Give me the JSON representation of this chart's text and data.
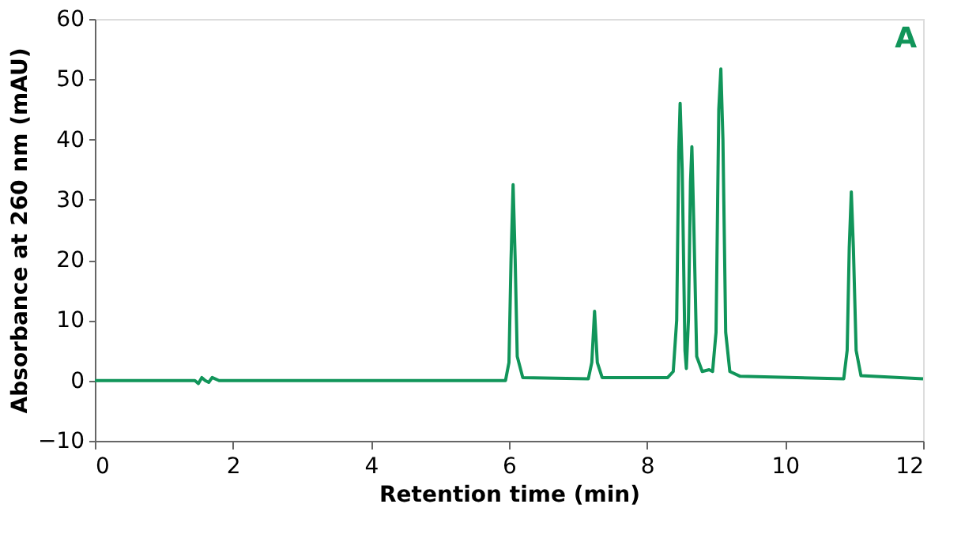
{
  "chart_data": {
    "type": "line",
    "xlabel": "Retention time (min)",
    "ylabel": "Absorbance at 260 nm (mAU)",
    "annotations": [
      "A"
    ],
    "xlim": [
      0,
      12
    ],
    "xticks": [
      0,
      2,
      4,
      6,
      8,
      10,
      12
    ],
    "ylim": [
      -10,
      60
    ],
    "yticks": [
      -10,
      0,
      10,
      20,
      30,
      40,
      50,
      60
    ],
    "grid": false,
    "marker": "none",
    "line_style": "solid",
    "series": [
      {
        "color": "#11955a",
        "x": [
          0,
          1.45,
          1.5,
          1.55,
          1.6,
          1.65,
          1.7,
          1.8,
          2,
          5.95,
          6.0,
          6.03,
          6.06,
          6.09,
          6.12,
          6.2,
          7.15,
          7.2,
          7.24,
          7.28,
          7.35,
          8.3,
          8.38,
          8.43,
          8.46,
          8.48,
          8.51,
          8.55,
          8.57,
          8.6,
          8.63,
          8.65,
          8.68,
          8.72,
          8.8,
          8.9,
          8.95,
          9.0,
          9.04,
          9.07,
          9.1,
          9.14,
          9.2,
          9.35,
          10.85,
          10.9,
          10.93,
          10.96,
          10.99,
          11.03,
          11.1,
          12
        ],
        "values": [
          0,
          0,
          -0.5,
          0.5,
          0,
          -0.3,
          0.5,
          0,
          0,
          0,
          3,
          20,
          32.5,
          20,
          4,
          0.5,
          0.3,
          3,
          11.5,
          3,
          0.5,
          0.5,
          1.5,
          10,
          38,
          46,
          35,
          5,
          2,
          10,
          33,
          38.8,
          25,
          4,
          1.5,
          1.8,
          1.5,
          8,
          45,
          51.7,
          40,
          8,
          1.5,
          0.7,
          0.3,
          5,
          22,
          31.3,
          22,
          5,
          0.8,
          0.3
        ]
      }
    ]
  }
}
